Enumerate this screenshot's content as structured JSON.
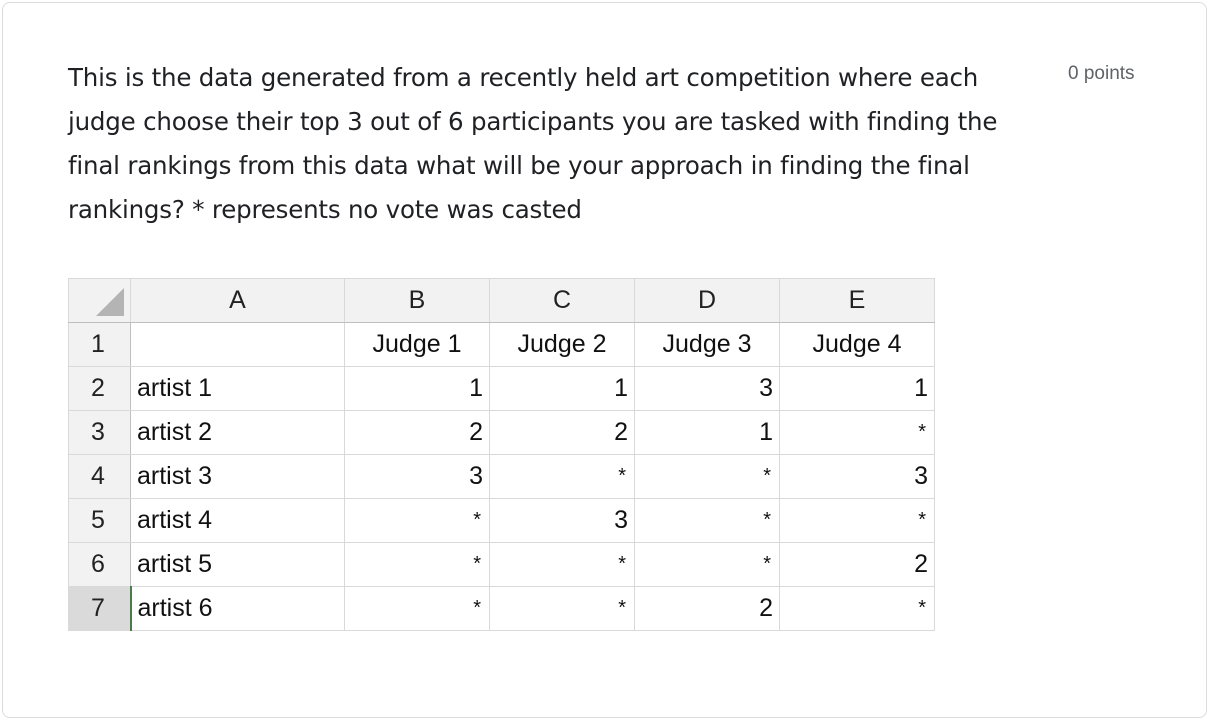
{
  "question": {
    "text": "This is the data generated from a recently held art competition where each judge choose their top 3 out of 6 participants you are tasked with finding the final rankings from this data what will be your approach in finding the final rankings? * represents no vote was casted",
    "points": "0 points"
  },
  "sheet": {
    "column_letters": [
      "A",
      "B",
      "C",
      "D",
      "E"
    ],
    "row_numbers": [
      "1",
      "2",
      "3",
      "4",
      "5",
      "6",
      "7"
    ],
    "header_row": [
      "",
      "Judge 1",
      "Judge 2",
      "Judge 3",
      "Judge 4"
    ],
    "rows": [
      {
        "name": "artist 1",
        "votes": [
          "1",
          "1",
          "3",
          "1"
        ]
      },
      {
        "name": "artist 2",
        "votes": [
          "2",
          "2",
          "1",
          "*"
        ]
      },
      {
        "name": "artist 3",
        "votes": [
          "3",
          "*",
          "*",
          "3"
        ]
      },
      {
        "name": "artist 4",
        "votes": [
          "*",
          "3",
          "*",
          "*"
        ]
      },
      {
        "name": "artist 5",
        "votes": [
          "*",
          "*",
          "*",
          "2"
        ]
      },
      {
        "name": "artist 6",
        "votes": [
          "*",
          "*",
          "2",
          "*"
        ]
      }
    ]
  }
}
